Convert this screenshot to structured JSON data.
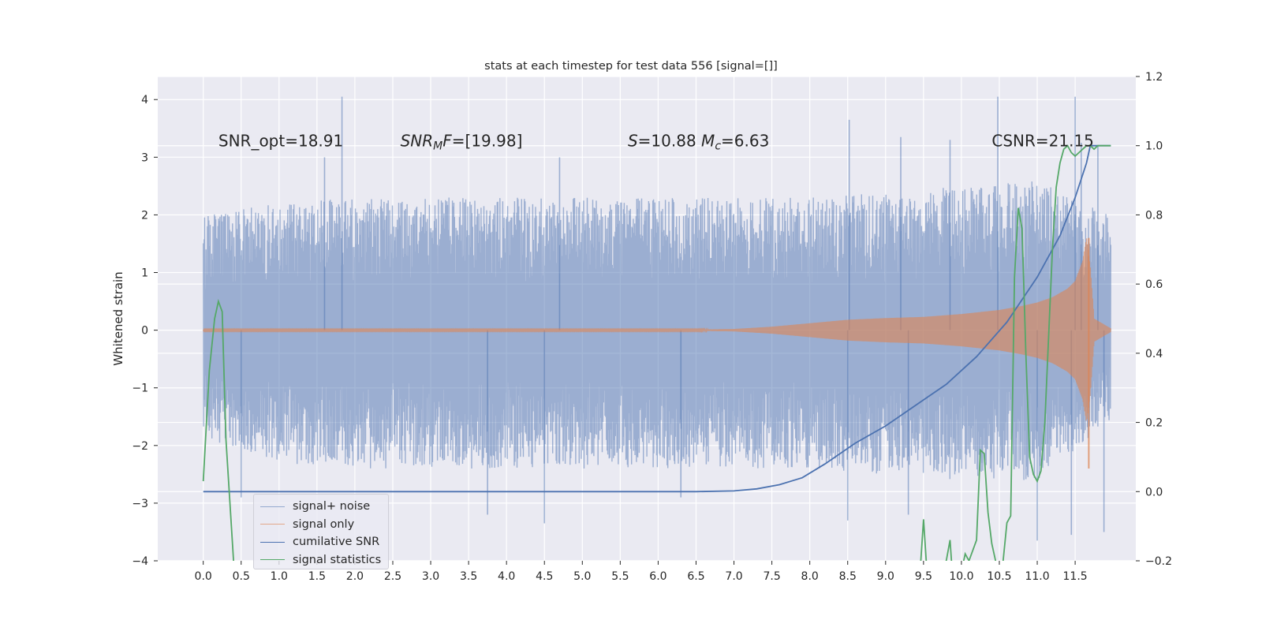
{
  "chart_data": {
    "type": "line",
    "title": "stats at each timestep for test data 556 [signal=[]]",
    "ylabel": "Whitened strain",
    "xlim": [
      -0.6,
      12.3
    ],
    "ylim": [
      -4,
      4.4
    ],
    "y2lim": [
      -0.2,
      1.2
    ],
    "x_ticks": [
      0.0,
      0.5,
      1.0,
      1.5,
      2.0,
      2.5,
      3.0,
      3.5,
      4.0,
      4.5,
      5.0,
      5.5,
      6.0,
      6.5,
      7.0,
      7.5,
      8.0,
      8.5,
      9.0,
      9.5,
      10.0,
      10.5,
      11.0,
      11.5
    ],
    "x_tick_labels": [
      "0.0",
      "0.5",
      "1.0",
      "1.5",
      "2.0",
      "2.5",
      "3.0",
      "3.5",
      "4.0",
      "4.5",
      "5.0",
      "5.5",
      "6.0",
      "6.5",
      "7.0",
      "7.5",
      "8.0",
      "8.5",
      "9.0",
      "9.5",
      "10.0",
      "10.5",
      "11.0",
      "11.5"
    ],
    "y_ticks": [
      -4,
      -3,
      -2,
      -1,
      0,
      1,
      2,
      3,
      4
    ],
    "y_tick_labels": [
      "−4",
      "−3",
      "−2",
      "−1",
      "0",
      "1",
      "2",
      "3",
      "4"
    ],
    "y2_ticks": [
      -0.2,
      0.0,
      0.2,
      0.4,
      0.6,
      0.8,
      1.0,
      1.2
    ],
    "y2_tick_labels": [
      "−0.2",
      "0.0",
      "0.2",
      "0.4",
      "0.6",
      "0.8",
      "1.0",
      "1.2"
    ],
    "grid": true,
    "legend_position": "lower-left",
    "annotations": [
      {
        "text": "SNR_opt=18.91",
        "x": 0.2,
        "y": 3.3
      },
      {
        "text": "SNR_MF=[19.98]",
        "x": 2.6,
        "y": 3.3
      },
      {
        "text": "S=10.88 M_c=6.63",
        "x": 5.6,
        "y": 3.3
      },
      {
        "text": "CSNR=21.15",
        "x": 10.4,
        "y": 3.3
      }
    ],
    "series": [
      {
        "name": "signal+ noise",
        "axis": "left",
        "color": "#4c72b0",
        "opacity": 0.5,
        "envelope_x": [
          0.0,
          1.0,
          2.0,
          3.0,
          4.0,
          5.0,
          6.0,
          7.0,
          8.0,
          9.0,
          10.0,
          11.0,
          11.97
        ],
        "envelope_upper": [
          2.0,
          2.2,
          2.3,
          2.3,
          2.3,
          2.3,
          2.3,
          2.3,
          2.3,
          2.4,
          2.5,
          2.6,
          2.0
        ],
        "envelope_lower": [
          -1.9,
          -2.3,
          -2.4,
          -2.4,
          -2.4,
          -2.4,
          -2.4,
          -2.4,
          -2.4,
          -2.5,
          -2.6,
          -2.6,
          -1.6
        ],
        "spikes": [
          [
            1.83,
            4.05
          ],
          [
            10.48,
            4.05
          ],
          [
            11.5,
            4.05
          ],
          [
            8.52,
            3.65
          ],
          [
            9.2,
            3.35
          ],
          [
            9.85,
            3.3
          ],
          [
            11.8,
            3.2
          ],
          [
            11.58,
            3.25
          ],
          [
            1.6,
            3.0
          ],
          [
            4.7,
            3.0
          ],
          [
            0.5,
            -2.9
          ],
          [
            3.75,
            -3.2
          ],
          [
            4.5,
            -3.35
          ],
          [
            8.5,
            -3.3
          ],
          [
            11.0,
            -3.65
          ],
          [
            11.45,
            -3.55
          ],
          [
            11.88,
            -3.5
          ],
          [
            9.3,
            -3.2
          ],
          [
            6.3,
            -2.9
          ]
        ]
      },
      {
        "name": "signal only",
        "axis": "left",
        "color": "#dd8452",
        "opacity": 0.6,
        "x": [
          0.0,
          6.5,
          7.0,
          7.5,
          8.0,
          8.5,
          9.0,
          9.5,
          10.0,
          10.5,
          10.8,
          11.0,
          11.2,
          11.4,
          11.5,
          11.6,
          11.65,
          11.7,
          11.75,
          11.97
        ],
        "amplitude": [
          0.01,
          0.01,
          0.02,
          0.06,
          0.12,
          0.18,
          0.21,
          0.23,
          0.28,
          0.35,
          0.42,
          0.48,
          0.57,
          0.72,
          0.85,
          1.2,
          1.6,
          1.1,
          0.2,
          0.03
        ]
      },
      {
        "name": "cumilative SNR",
        "axis": "right",
        "color": "#4c72b0",
        "x": [
          0.0,
          6.5,
          7.0,
          7.3,
          7.6,
          7.9,
          8.2,
          8.6,
          9.0,
          9.4,
          9.8,
          10.2,
          10.6,
          11.0,
          11.3,
          11.5,
          11.65,
          11.7,
          11.97
        ],
        "values": [
          0.0,
          0.0,
          0.002,
          0.008,
          0.02,
          0.04,
          0.08,
          0.14,
          0.19,
          0.25,
          0.31,
          0.39,
          0.49,
          0.62,
          0.74,
          0.85,
          0.95,
          1.0,
          1.0
        ]
      },
      {
        "name": "signal statistics",
        "axis": "right",
        "color": "#55a868",
        "x": [
          0.0,
          0.08,
          0.15,
          0.2,
          0.25,
          0.3,
          0.4,
          0.55,
          9.45,
          9.5,
          9.55,
          9.8,
          9.85,
          9.9,
          9.95,
          10.0,
          10.05,
          10.1,
          10.2,
          10.25,
          10.3,
          10.35,
          10.4,
          10.45,
          10.5,
          10.55,
          10.6,
          10.65,
          10.7,
          10.75,
          10.8,
          10.85,
          10.9,
          10.95,
          11.0,
          11.05,
          11.1,
          11.15,
          11.2,
          11.25,
          11.3,
          11.35,
          11.4,
          11.45,
          11.5,
          11.55,
          11.6,
          11.65,
          11.7,
          11.75,
          11.8,
          11.85,
          11.9,
          11.97
        ],
        "values": [
          0.03,
          0.35,
          0.5,
          0.55,
          0.52,
          0.15,
          -0.2,
          -0.3,
          -0.25,
          -0.08,
          -0.25,
          -0.2,
          -0.14,
          -0.3,
          -0.25,
          -0.23,
          -0.18,
          -0.2,
          -0.14,
          0.12,
          0.11,
          -0.06,
          -0.15,
          -0.2,
          -0.25,
          -0.2,
          -0.09,
          -0.07,
          0.62,
          0.82,
          0.76,
          0.4,
          0.1,
          0.05,
          0.03,
          0.06,
          0.2,
          0.45,
          0.7,
          0.88,
          0.95,
          0.99,
          1.0,
          0.98,
          0.97,
          0.98,
          0.99,
          1.0,
          1.0,
          0.99,
          1.0,
          1.0,
          1.0,
          1.0
        ]
      }
    ]
  }
}
